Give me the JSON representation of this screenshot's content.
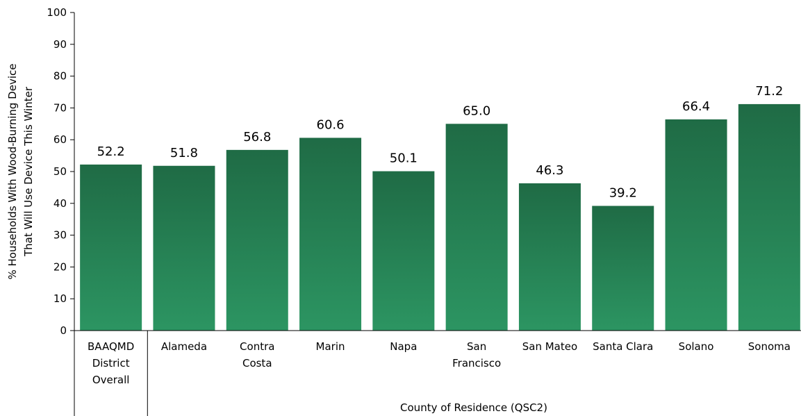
{
  "chart_data": {
    "type": "bar",
    "categories": [
      [
        "BAAQMD",
        "District",
        "Overall"
      ],
      [
        "Alameda"
      ],
      [
        "Contra",
        "Costa"
      ],
      [
        "Marin"
      ],
      [
        "Napa"
      ],
      [
        "San",
        "Francisco"
      ],
      [
        "San Mateo"
      ],
      [
        "Santa Clara"
      ],
      [
        "Solano"
      ],
      [
        "Sonoma"
      ]
    ],
    "values": [
      52.2,
      51.8,
      56.8,
      60.6,
      50.1,
      65.0,
      46.3,
      39.2,
      66.4,
      71.2
    ],
    "value_labels": [
      "52.2",
      "51.8",
      "56.8",
      "60.6",
      "50.1",
      "65.0",
      "46.3",
      "39.2",
      "66.4",
      "71.2"
    ],
    "title": "",
    "xlabel": "County of Residence (QSC2)",
    "ylabel": [
      "% Households With Wood-Burning Device",
      "That Will Use Device This Winter"
    ],
    "ylim": [
      0,
      100
    ],
    "yticks": [
      0,
      10,
      20,
      30,
      40,
      50,
      60,
      70,
      80,
      90,
      100
    ],
    "grid": false,
    "legend": "none",
    "colors": {
      "bar_top": "#1f6b45",
      "bar_bottom": "#2c9562",
      "axis": "#000000"
    }
  }
}
